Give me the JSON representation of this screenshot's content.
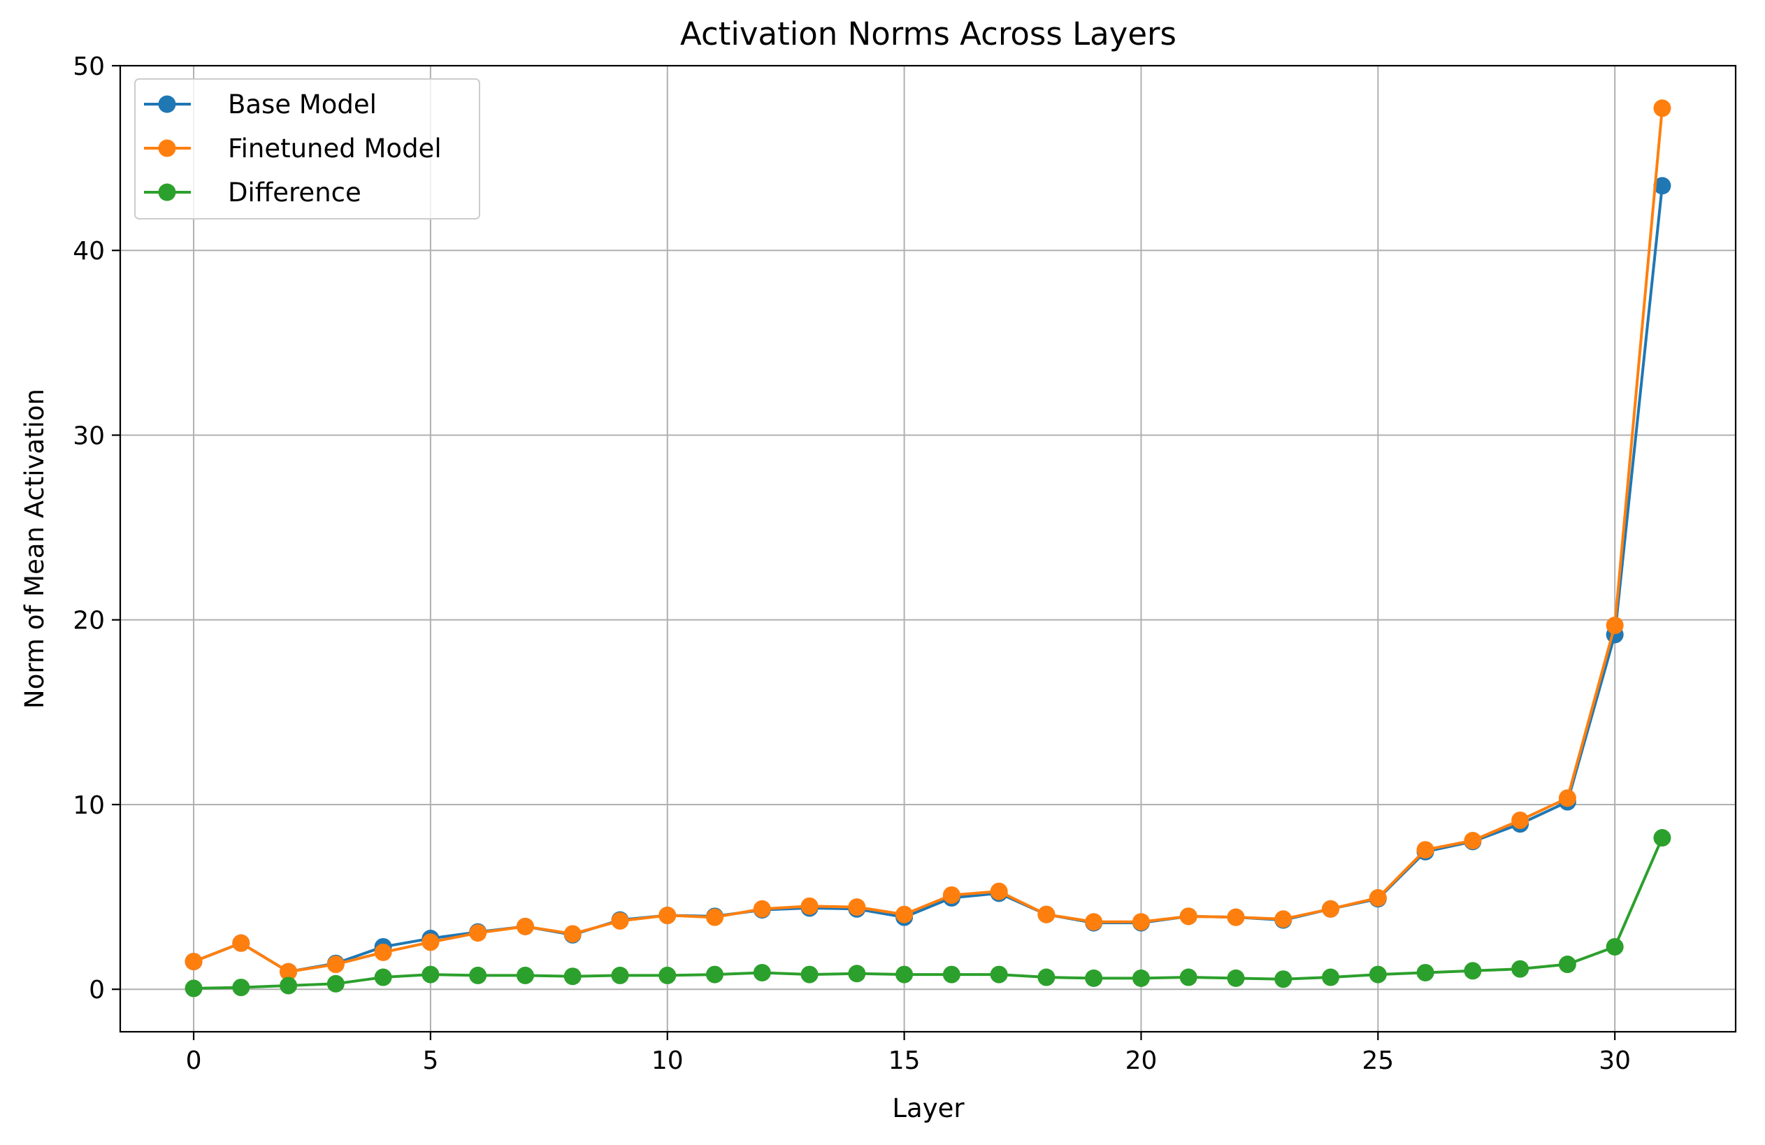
{
  "chart_data": {
    "type": "line",
    "title": "Activation Norms Across Layers",
    "xlabel": "Layer",
    "ylabel": "Norm of Mean Activation",
    "xlim": [
      -1.55,
      32.55
    ],
    "ylim": [
      -2.3,
      50
    ],
    "xticks": [
      0,
      5,
      10,
      15,
      20,
      25,
      30
    ],
    "yticks": [
      0,
      10,
      20,
      30,
      40,
      50
    ],
    "grid": true,
    "legend_position": "top-left",
    "x": [
      0,
      1,
      2,
      3,
      4,
      5,
      6,
      7,
      8,
      9,
      10,
      11,
      12,
      13,
      14,
      15,
      16,
      17,
      18,
      19,
      20,
      21,
      22,
      23,
      24,
      25,
      26,
      27,
      28,
      29,
      30,
      31
    ],
    "series": [
      {
        "name": "Base Model",
        "color": "#1f77b4",
        "values": [
          1.5,
          2.5,
          0.95,
          1.4,
          2.3,
          2.75,
          3.1,
          3.4,
          2.95,
          3.75,
          4.0,
          3.95,
          4.3,
          4.4,
          4.35,
          3.9,
          4.95,
          5.2,
          4.05,
          3.6,
          3.6,
          3.95,
          3.9,
          3.75,
          4.35,
          4.9,
          7.45,
          8.0,
          8.95,
          10.15,
          19.2,
          43.5
        ]
      },
      {
        "name": "Finetuned Model",
        "color": "#ff7f0e",
        "values": [
          1.5,
          2.5,
          0.95,
          1.35,
          2.0,
          2.55,
          3.05,
          3.4,
          3.0,
          3.7,
          4.0,
          3.9,
          4.35,
          4.5,
          4.45,
          4.05,
          5.1,
          5.3,
          4.05,
          3.65,
          3.65,
          3.95,
          3.9,
          3.8,
          4.35,
          4.95,
          7.55,
          8.05,
          9.15,
          10.35,
          19.7,
          47.7
        ]
      },
      {
        "name": "Difference",
        "color": "#2ca02c",
        "values": [
          0.05,
          0.1,
          0.2,
          0.3,
          0.65,
          0.8,
          0.75,
          0.75,
          0.7,
          0.75,
          0.75,
          0.8,
          0.9,
          0.8,
          0.85,
          0.8,
          0.8,
          0.8,
          0.65,
          0.6,
          0.6,
          0.65,
          0.6,
          0.55,
          0.65,
          0.8,
          0.9,
          1.0,
          1.1,
          1.35,
          2.3,
          8.2
        ]
      }
    ]
  }
}
